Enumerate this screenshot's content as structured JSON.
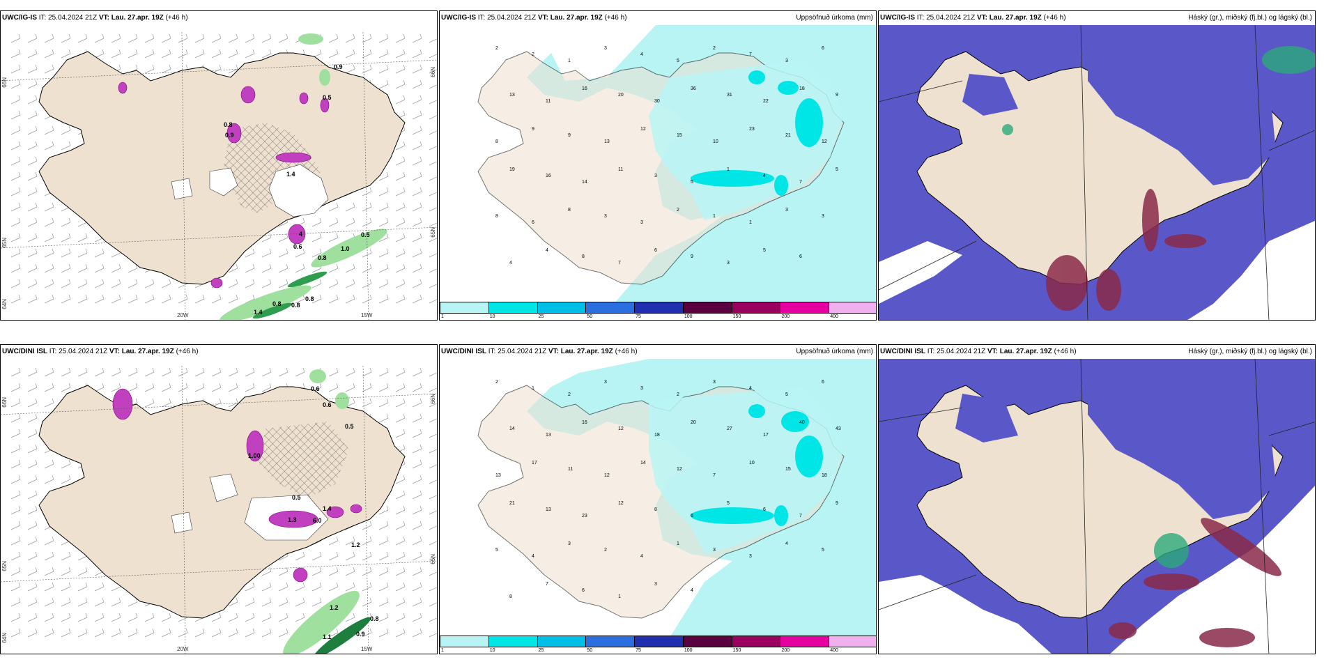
{
  "panels": {
    "p1": {
      "model": "UWC/IG-IS",
      "it": "IT: 25.04.2024 21Z",
      "vt": "VT: Lau. 27.apr. 19Z",
      "lead": "(+46 h)",
      "lon1": "20W",
      "lon2": "15W",
      "lat1": "66N",
      "lat2": "65N",
      "lat3": "64N",
      "lat4": "66N",
      "lat5": "65N"
    },
    "p2": {
      "model": "UWC/IG-IS",
      "it": "IT: 25.04.2024 21Z",
      "vt": "VT: Lau. 27.apr. 19Z",
      "lead": "(+46 h)",
      "right": "Uppsöfnuð úrkoma (mm)"
    },
    "p3": {
      "model": "UWC/IG-IS",
      "it": "IT: 25.04.2024 21Z",
      "vt": "VT: Lau. 27.apr. 19Z",
      "lead": "(+46 h)",
      "right": "Háský (gr.), miðský (fj.bl.) og lágský (bl.)"
    },
    "p4": {
      "model": "UWC/DINI ISL",
      "it": "IT: 25.04.2024 21Z",
      "vt": "VT: Lau. 27.apr. 19Z",
      "lead": "(+46 h)",
      "lon1": "20W",
      "lon2": "15W",
      "lat1": "66N",
      "lat2": "65N",
      "lat3": "64N",
      "lat4": "66N",
      "lat5": "65N"
    },
    "p5": {
      "model": "UWC/DINI ISL",
      "it": "IT: 25.04.2024 21Z",
      "vt": "VT: Lau. 27.apr. 19Z",
      "lead": "(+46 h)",
      "right": "Uppsöfnuð úrkoma (mm)"
    },
    "p6": {
      "model": "UWC/DINI ISL",
      "it": "IT: 25.04.2024 21Z",
      "vt": "VT: Lau. 27.apr. 19Z",
      "lead": "(+46 h)",
      "right": "Háský (gr.), miðský (fj.bl.) og lágský (bl.)"
    }
  },
  "colorbar": {
    "ticks": [
      "1",
      "10",
      "25",
      "50",
      "75",
      "100",
      "150",
      "200",
      "400"
    ],
    "colors": [
      "#b8f4f4",
      "#00e6e6",
      "#00bfe6",
      "#2a6ee0",
      "#1f2fb0",
      "#5a0040",
      "#9a0060",
      "#e600a0",
      "#f0b0f0"
    ]
  },
  "top_precip_values": [
    "2",
    "2",
    "1",
    "3",
    "4",
    "5",
    "2",
    "7",
    "3",
    "6",
    "13",
    "11",
    "16",
    "20",
    "30",
    "36",
    "31",
    "22",
    "18",
    "9",
    "8",
    "9",
    "9",
    "13",
    "12",
    "15",
    "10",
    "23",
    "21",
    "12",
    "19",
    "16",
    "14",
    "11",
    "3",
    "5",
    "1",
    "4",
    "7",
    "5",
    "8",
    "6",
    "8",
    "3",
    "3",
    "2",
    "1",
    "1",
    "3",
    "3",
    "4",
    "4",
    "8",
    "7",
    "6",
    "9",
    "3",
    "5",
    "6"
  ],
  "bottom_precip_values": [
    "2",
    "1",
    "2",
    "3",
    "3",
    "2",
    "3",
    "4",
    "5",
    "6",
    "14",
    "13",
    "16",
    "12",
    "18",
    "20",
    "27",
    "17",
    "40",
    "43",
    "13",
    "17",
    "11",
    "12",
    "14",
    "12",
    "7",
    "10",
    "15",
    "18",
    "21",
    "13",
    "23",
    "12",
    "8",
    "6",
    "5",
    "6",
    "7",
    "9",
    "5",
    "4",
    "3",
    "2",
    "4",
    "1",
    "3",
    "3",
    "4",
    "5",
    "8",
    "7",
    "6",
    "1",
    "3",
    "4"
  ],
  "top_wind_labels": [
    "0.9",
    "0.5",
    "0.8",
    "0.9",
    "1.4",
    "4",
    "0.6",
    "0.8",
    "0.5",
    "1.0",
    "0.8",
    "0.8",
    "1.4",
    "0.8"
  ],
  "bottom_wind_labels": [
    "0.6",
    "0.6",
    "0.5",
    "1.00",
    "0.5",
    "1.3",
    "6.0",
    "1.4",
    "1.2",
    "1.2",
    "0.8",
    "1.1",
    "0.9"
  ]
}
